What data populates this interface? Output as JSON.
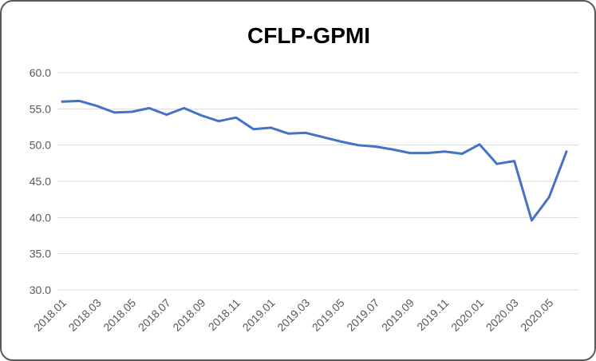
{
  "window": {
    "background_color": "#ffffff",
    "border_color": "#595959"
  },
  "chart_data": {
    "type": "line",
    "title": "CFLP-GPMI",
    "xlabel": "",
    "ylabel": "",
    "categories": [
      "2018.01",
      "2018.02",
      "2018.03",
      "2018.04",
      "2018.05",
      "2018.06",
      "2018.07",
      "2018.08",
      "2018.09",
      "2018.10",
      "2018.11",
      "2018.12",
      "2019.01",
      "2019.02",
      "2019.03",
      "2019.04",
      "2019.05",
      "2019.06",
      "2019.07",
      "2019.08",
      "2019.09",
      "2019.10",
      "2019.11",
      "2019.12",
      "2020.01",
      "2020.02",
      "2020.03",
      "2020.04",
      "2020.05",
      "2020.06"
    ],
    "series": [
      {
        "name": "CFLP-GPMI",
        "values": [
          56.0,
          56.1,
          55.4,
          54.5,
          54.6,
          55.1,
          54.2,
          55.1,
          54.1,
          53.3,
          53.8,
          52.2,
          52.4,
          51.6,
          51.7,
          51.1,
          50.5,
          50.0,
          49.8,
          49.4,
          48.9,
          48.9,
          49.1,
          48.8,
          50.1,
          47.4,
          47.8,
          39.6,
          42.8,
          49.1
        ]
      }
    ],
    "x_tick_labels": [
      "2018.01",
      "2018.03",
      "2018.05",
      "2018.07",
      "2018.09",
      "2018.11",
      "2019.01",
      "2019.03",
      "2019.05",
      "2019.07",
      "2019.09",
      "2019.11",
      "2020.01",
      "2020.03",
      "2020.05"
    ],
    "x_tick_step": 2,
    "y_ticks": [
      60.0,
      55.0,
      50.0,
      45.0,
      40.0,
      35.0,
      30.0
    ],
    "y_tick_decimals": 1,
    "ylim": [
      30,
      60
    ],
    "grid": true,
    "legend_position": "none",
    "line_color": "#4472C4",
    "gridline_color": "#D9D9D9",
    "axis_label_color": "#595959",
    "title_color": "#000000"
  }
}
